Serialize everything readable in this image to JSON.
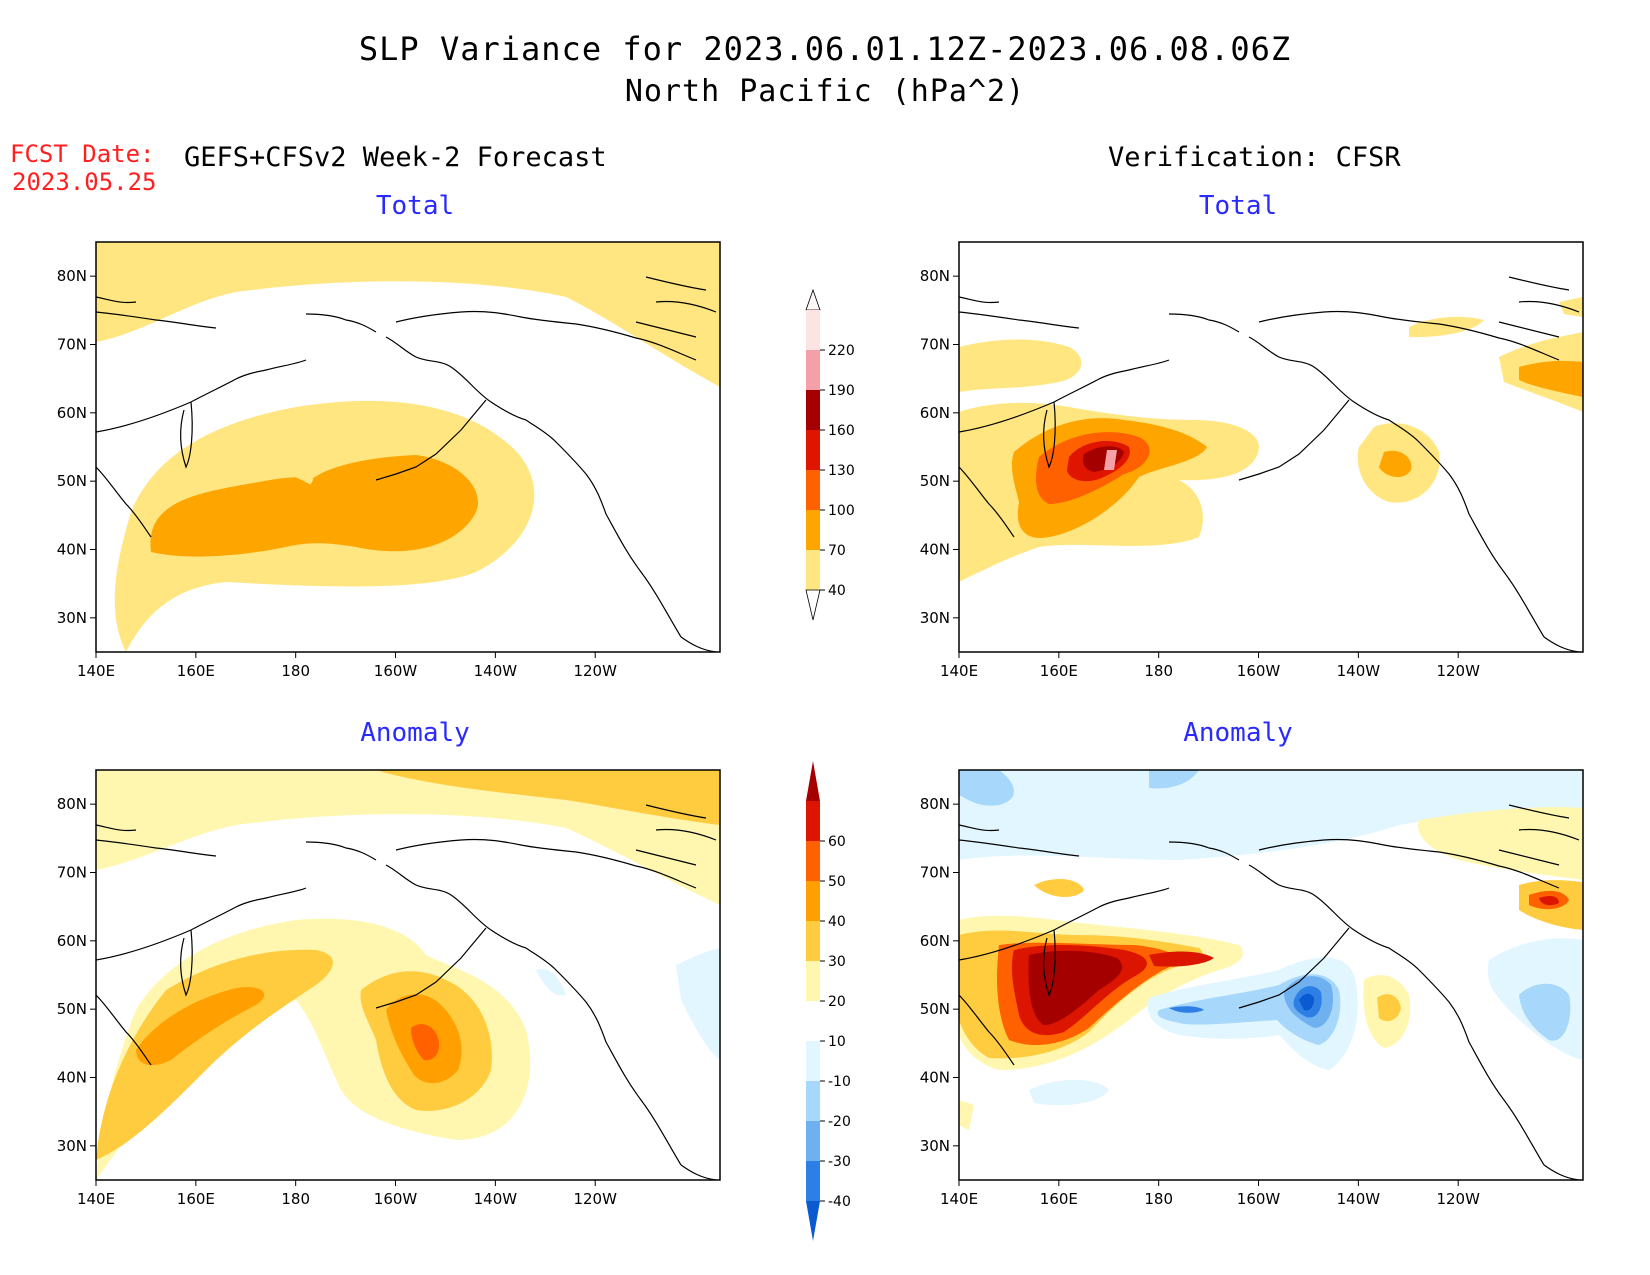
{
  "header": {
    "title_line1": "SLP Variance for 2023.06.01.12Z-2023.06.08.06Z",
    "title_line2": "North Pacific (hPa^2)",
    "fcst_label": "FCST Date:",
    "fcst_date": "2023.05.25",
    "left_header": "GEFS+CFSv2 Week-2 Forecast",
    "right_header": "Verification: CFSR"
  },
  "axes": {
    "lon_ticks": [
      "140E",
      "160E",
      "180",
      "160W",
      "140W",
      "120W"
    ],
    "lat_ticks": [
      "80N",
      "70N",
      "60N",
      "50N",
      "40N",
      "30N"
    ]
  },
  "panels": {
    "fcst_total": {
      "title": "Total"
    },
    "verif_total": {
      "title": "Total"
    },
    "fcst_anom": {
      "title": "Anomaly"
    },
    "verif_anom": {
      "title": "Anomaly"
    }
  },
  "colorbars": {
    "total": {
      "labels": [
        "40",
        "70",
        "100",
        "130",
        "160",
        "190",
        "220"
      ],
      "colors": [
        "#ffe680",
        "#ffa500",
        "#ff6000",
        "#e01500",
        "#a50000",
        "#f5a0a8",
        "#fde4e4"
      ]
    },
    "anomaly": {
      "labels": [
        "-40",
        "-30",
        "-20",
        "-10",
        "10",
        "20",
        "30",
        "40",
        "50",
        "60"
      ],
      "colors": [
        "#0a5ad2",
        "#2d7fe6",
        "#6fb0f0",
        "#a7d7fb",
        "#e2f6ff",
        "#ffffff",
        "#fff7b0",
        "#ffcc40",
        "#ffa000",
        "#ff6000",
        "#dc1500",
        "#a50000"
      ]
    }
  }
}
